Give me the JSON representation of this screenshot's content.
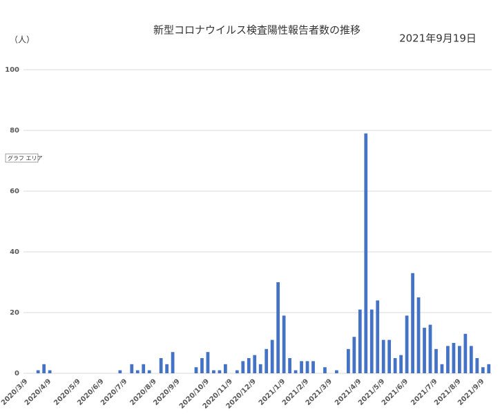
{
  "chart_data": {
    "type": "bar",
    "title": "新型コロナウイルス検査陽性報告者数の推移",
    "date_label": "2021年9月19日",
    "y_axis_label": "（人）",
    "tooltip": "グラフ エリア",
    "color": "#4472c4",
    "grid": true,
    "ylim": [
      0,
      100
    ],
    "yticks": [
      0,
      20,
      40,
      60,
      80,
      100
    ],
    "categories": [
      "2020/3/9",
      null,
      null,
      null,
      "2020/4/9",
      null,
      null,
      null,
      null,
      "2020/5/9",
      null,
      null,
      null,
      "2020/6/9",
      null,
      null,
      null,
      "2020/7/9",
      null,
      null,
      null,
      null,
      "2020/8/9",
      null,
      null,
      null,
      "2020/9/9",
      null,
      null,
      null,
      null,
      "2020/10/9",
      null,
      null,
      null,
      "2020/11/9",
      null,
      null,
      null,
      "2020/12/9",
      null,
      null,
      null,
      null,
      "2021/1/9",
      null,
      null,
      null,
      "2021/2/9",
      null,
      null,
      null,
      "2021/3/9",
      null,
      null,
      null,
      null,
      "2021/4/9",
      null,
      null,
      null,
      "2021/5/9",
      null,
      null,
      null,
      "2021/6/9",
      null,
      null,
      null,
      null,
      "2021/7/9",
      null,
      null,
      null,
      "2021/8/9",
      null,
      null,
      null,
      "2021/9/9",
      null
    ],
    "values": [
      0,
      0,
      1,
      3,
      1,
      0,
      0,
      0,
      0,
      0,
      0,
      0,
      0,
      0,
      0,
      0,
      1,
      0,
      3,
      1,
      3,
      1,
      0,
      5,
      3,
      7,
      0,
      0,
      0,
      2,
      5,
      7,
      1,
      1,
      3,
      0,
      1,
      4,
      5,
      6,
      3,
      8,
      11,
      30,
      19,
      5,
      1,
      4,
      4,
      4,
      0,
      2,
      0,
      1,
      0,
      8,
      12,
      21,
      79,
      21,
      24,
      11,
      11,
      5,
      6,
      19,
      33,
      25,
      15,
      16,
      8,
      3,
      9,
      10,
      9,
      13,
      9,
      5,
      2,
      3
    ]
  }
}
